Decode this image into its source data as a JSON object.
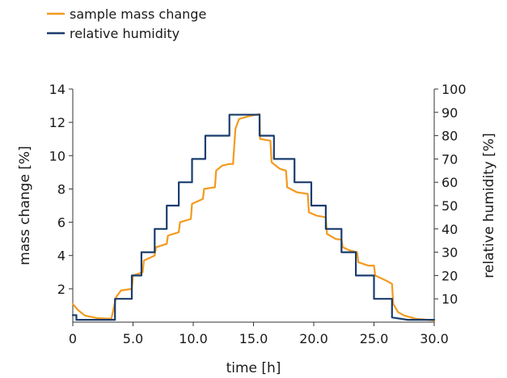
{
  "chart_data": {
    "type": "line",
    "title": "",
    "xlabel": "time [h]",
    "ylabel": "mass change [%]",
    "y2label": "relative humidity [%]",
    "xlim": [
      0,
      30
    ],
    "ylim": [
      0,
      14
    ],
    "y2lim": [
      0,
      100
    ],
    "x_ticks": [
      0,
      5,
      10,
      15,
      20,
      25,
      30
    ],
    "x_tick_labels": [
      "0",
      "5.0",
      "10.0",
      "15.0",
      "20.0",
      "25.0",
      "30.0"
    ],
    "y_ticks": [
      2,
      4,
      6,
      8,
      10,
      12,
      14
    ],
    "y_tick_labels": [
      "2",
      "4",
      "6",
      "8",
      "10",
      "12",
      "14"
    ],
    "y2_ticks": [
      10,
      20,
      30,
      40,
      50,
      60,
      70,
      80,
      90,
      100
    ],
    "y2_tick_labels": [
      "10",
      "20",
      "30",
      "40",
      "50",
      "60",
      "70",
      "80",
      "90",
      "100"
    ],
    "grid": false,
    "legend_position": "top-left",
    "series": [
      {
        "name": "sample mass change",
        "axis": "left",
        "color": "#f39a1e",
        "points": [
          [
            0,
            1.1
          ],
          [
            0.4,
            0.75
          ],
          [
            1,
            0.4
          ],
          [
            2,
            0.25
          ],
          [
            3.2,
            0.2
          ],
          [
            3.6,
            1.5
          ],
          [
            4,
            1.9
          ],
          [
            4.9,
            2.0
          ],
          [
            5,
            2.8
          ],
          [
            5.8,
            3.0
          ],
          [
            5.9,
            3.7
          ],
          [
            6.8,
            4.0
          ],
          [
            6.9,
            4.5
          ],
          [
            7.8,
            4.7
          ],
          [
            7.9,
            5.2
          ],
          [
            8.8,
            5.4
          ],
          [
            8.9,
            6.0
          ],
          [
            9.8,
            6.2
          ],
          [
            9.9,
            7.1
          ],
          [
            10.8,
            7.4
          ],
          [
            10.9,
            8.0
          ],
          [
            11.8,
            8.1
          ],
          [
            11.9,
            9.1
          ],
          [
            12.4,
            9.4
          ],
          [
            13,
            9.5
          ],
          [
            13.3,
            9.5
          ],
          [
            13.5,
            11.6
          ],
          [
            13.8,
            12.2
          ],
          [
            14.5,
            12.35
          ],
          [
            15.5,
            12.5
          ],
          [
            15.55,
            11.0
          ],
          [
            16.4,
            10.9
          ],
          [
            16.5,
            9.6
          ],
          [
            17.2,
            9.2
          ],
          [
            17.7,
            9.1
          ],
          [
            17.8,
            8.1
          ],
          [
            18.6,
            7.8
          ],
          [
            19.5,
            7.7
          ],
          [
            19.6,
            6.6
          ],
          [
            20.2,
            6.4
          ],
          [
            21,
            6.3
          ],
          [
            21.1,
            5.3
          ],
          [
            21.8,
            5.0
          ],
          [
            22.3,
            4.95
          ],
          [
            22.4,
            4.5
          ],
          [
            23,
            4.3
          ],
          [
            23.6,
            4.2
          ],
          [
            23.7,
            3.6
          ],
          [
            24.5,
            3.4
          ],
          [
            25,
            3.4
          ],
          [
            25.1,
            2.8
          ],
          [
            26,
            2.5
          ],
          [
            26.5,
            2.3
          ],
          [
            26.6,
            1.1
          ],
          [
            27,
            0.6
          ],
          [
            27.5,
            0.4
          ],
          [
            28.5,
            0.2
          ],
          [
            30,
            0.1
          ]
        ]
      },
      {
        "name": "relative humidity",
        "axis": "right",
        "color": "#1b3d6e",
        "points": [
          [
            0,
            3
          ],
          [
            0.3,
            3
          ],
          [
            0.3,
            1
          ],
          [
            3.5,
            1
          ],
          [
            3.5,
            10
          ],
          [
            4.9,
            10
          ],
          [
            4.9,
            20
          ],
          [
            5.7,
            20
          ],
          [
            5.7,
            30
          ],
          [
            6.8,
            30
          ],
          [
            6.8,
            40
          ],
          [
            7.8,
            40
          ],
          [
            7.8,
            50
          ],
          [
            8.8,
            50
          ],
          [
            8.8,
            60
          ],
          [
            9.9,
            60
          ],
          [
            9.9,
            70
          ],
          [
            11,
            70
          ],
          [
            11,
            80
          ],
          [
            13,
            80
          ],
          [
            13,
            89
          ],
          [
            15.5,
            89
          ],
          [
            15.5,
            80
          ],
          [
            16.7,
            80
          ],
          [
            16.7,
            70
          ],
          [
            18.4,
            70
          ],
          [
            18.4,
            60
          ],
          [
            19.8,
            60
          ],
          [
            19.8,
            50
          ],
          [
            21,
            50
          ],
          [
            21,
            40
          ],
          [
            22.3,
            40
          ],
          [
            22.3,
            30
          ],
          [
            23.5,
            30
          ],
          [
            23.5,
            20
          ],
          [
            25,
            20
          ],
          [
            25,
            10
          ],
          [
            26.5,
            10
          ],
          [
            26.5,
            2
          ],
          [
            27.8,
            1
          ],
          [
            30,
            1
          ]
        ]
      }
    ]
  }
}
